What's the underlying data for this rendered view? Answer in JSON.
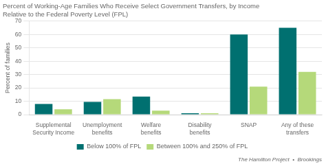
{
  "chart_data": {
    "type": "bar",
    "title": "Percent of Working-Age Families Who Receive Select Government Transfers, by Income",
    "subtitle": "Relative to the Federal Poverty Level (FPL)",
    "ylabel": "Percent of families",
    "categories": [
      "Supplemental\nSecurity Income",
      "Unemployment\nbenefits",
      "Welfare\nbenefits",
      "Disability\nbenefits",
      "SNAP",
      "Any of these\ntransfers"
    ],
    "series": [
      {
        "name": "Below 100% of FPL",
        "color": "#007070",
        "values": [
          8,
          9.5,
          13.5,
          1,
          60,
          65
        ]
      },
      {
        "name": "Between 100% and 250% of FPL",
        "color": "#b5d97a",
        "values": [
          4,
          11.5,
          3,
          1,
          21,
          32
        ]
      }
    ],
    "ylim": [
      0,
      70
    ],
    "yticks": [
      0,
      10,
      20,
      30,
      40,
      50,
      60,
      70
    ],
    "grid": true,
    "legend": "bottom",
    "annotations": [
      "The Hamilton Project  •  Brookings"
    ]
  }
}
